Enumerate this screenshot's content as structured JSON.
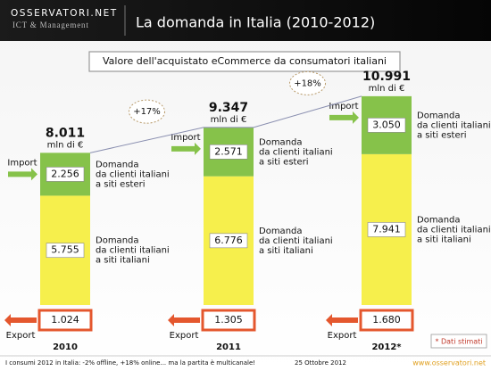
{
  "header": {
    "logo": "OSSERVATORI.NET",
    "logo_sub": "ICT & Management",
    "title": "La domanda in Italia (2010-2012)"
  },
  "chart_data": {
    "type": "bar",
    "stacked": true,
    "title": "Valore dell'acquistato eCommerce da consumatori italiani",
    "categories": [
      "2010",
      "2011",
      "2012*"
    ],
    "series": [
      {
        "label": [
          "Domanda",
          "da clienti italiani",
          "a siti italiani"
        ],
        "color": "#f6ef4c",
        "values": [
          5755,
          6776,
          7941
        ],
        "value_labels": [
          "5.755",
          "6.776",
          "7.941"
        ]
      },
      {
        "label": [
          "Domanda",
          "da clienti italiani",
          "a siti esteri"
        ],
        "color": "#86c24a",
        "values": [
          2256,
          2571,
          3050
        ],
        "value_labels": [
          "2.256",
          "2.571",
          "3.050"
        ]
      }
    ],
    "totals": {
      "values": [
        8011,
        9347,
        10991
      ],
      "value_labels": [
        "8.011",
        "9.347",
        "10.991"
      ],
      "unit": "mln di €"
    },
    "import_label": "Import",
    "export": {
      "name": "Export",
      "color": "#e4572e",
      "values": [
        1024,
        1305,
        1680
      ],
      "value_labels": [
        "1.024",
        "1.305",
        "1.680"
      ]
    },
    "annotations": [
      "+17%",
      "+18%"
    ],
    "note": "* Dati stimati"
  },
  "footer": {
    "left": "I consumi 2012 in Italia: -2% offline, +18% online... ma la partita è multicanale!",
    "date": "25 Ottobre 2012",
    "url": "www.osservatori.net"
  }
}
